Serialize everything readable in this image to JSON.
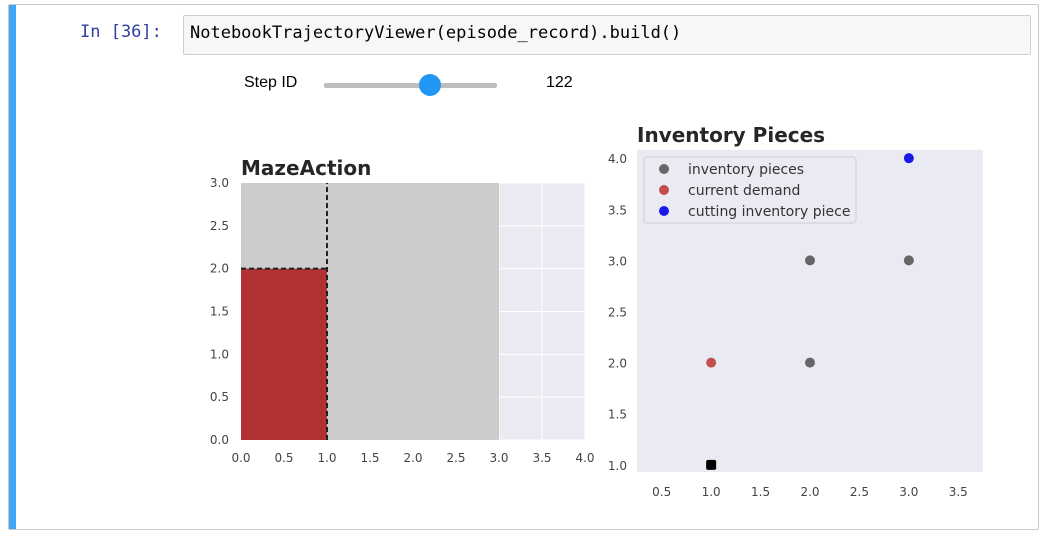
{
  "cell": {
    "prompt": "In [36]:",
    "code": "NotebookTrajectoryViewer(episode_record).build()"
  },
  "widget": {
    "label": "Step ID",
    "value": 122,
    "min": 0,
    "max": 200
  },
  "colors": {
    "cell_bar": "#42a5f5",
    "prompt": "#303f9f",
    "slider_handle": "#2196f3",
    "plot_bg": "#eaeaf2",
    "maze_fill": "#cccccc",
    "demand_fill": "#b03232"
  },
  "chart_data": [
    {
      "type": "area",
      "title": "MazeAction",
      "xlim": [
        0,
        4
      ],
      "ylim": [
        0,
        3
      ],
      "xticks": [
        "0.0",
        "0.5",
        "1.0",
        "1.5",
        "2.0",
        "2.5",
        "3.0",
        "3.5",
        "4.0"
      ],
      "yticks": [
        "0.0",
        "0.5",
        "1.0",
        "1.5",
        "2.0",
        "2.5",
        "3.0"
      ],
      "rectangles": [
        {
          "x0": 0,
          "y0": 0,
          "x1": 3,
          "y1": 3,
          "color": "#cccccc"
        },
        {
          "x0": 0,
          "y0": 0,
          "x1": 1,
          "y1": 2,
          "color": "#b03232"
        }
      ],
      "cut_lines": [
        {
          "x0": 1,
          "y0": 0,
          "x1": 1,
          "y1": 3
        },
        {
          "x0": 0,
          "y0": 2,
          "x1": 1,
          "y1": 2
        }
      ],
      "grid": true
    },
    {
      "type": "scatter",
      "title": "Inventory Pieces",
      "xlim": [
        0.25,
        3.75
      ],
      "ylim": [
        0.93,
        4.08
      ],
      "xticks": [
        "0.5",
        "1.0",
        "1.5",
        "2.0",
        "2.5",
        "3.0",
        "3.5"
      ],
      "yticks": [
        "1.0",
        "1.5",
        "2.0",
        "2.5",
        "3.0",
        "3.5",
        "4.0"
      ],
      "legend_position": "top-left",
      "series": [
        {
          "name": "inventory pieces",
          "color": "#666666",
          "points": [
            [
              2,
              3
            ],
            [
              3,
              3
            ],
            [
              2,
              2
            ]
          ]
        },
        {
          "name": "current demand",
          "color": "#c0504d",
          "points": [
            [
              1,
              2
            ]
          ]
        },
        {
          "name": "cutting inventory piece",
          "color": "#1a1ae6",
          "points": [
            [
              3,
              4
            ]
          ]
        }
      ],
      "extra_points": [
        {
          "color": "#000000",
          "points": [
            [
              1,
              1
            ]
          ]
        }
      ],
      "grid": false
    }
  ]
}
